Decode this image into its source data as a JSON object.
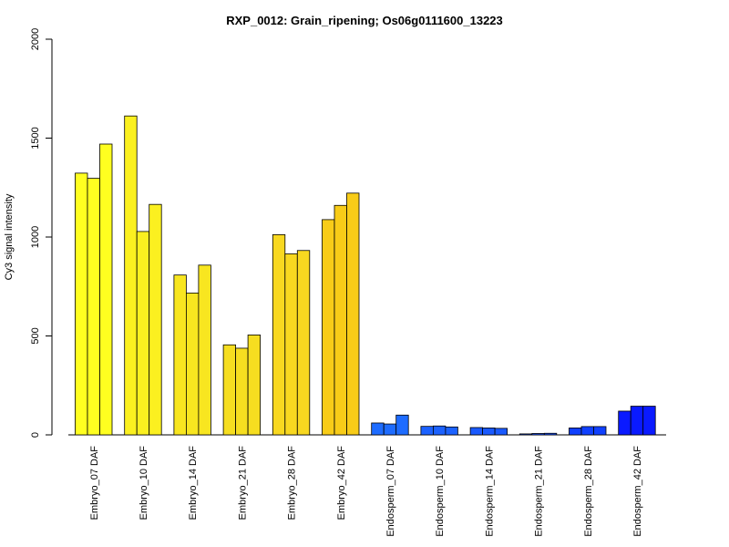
{
  "chart_data": {
    "type": "bar",
    "title": "RXP_0012: Grain_ripening; Os06g0111600_13223",
    "ylabel": "Cy3 signal intensity",
    "xlabel": "",
    "ylim": [
      0,
      2000
    ],
    "yticks": [
      0,
      500,
      1000,
      1500,
      2000
    ],
    "grid": false,
    "categories": [
      "Embryo_07 DAF",
      "Embryo_10 DAF",
      "Embryo_14 DAF",
      "Embryo_21 DAF",
      "Embryo_28 DAF",
      "Embryo_42 DAF",
      "Endosperm_07 DAF",
      "Endosperm_10 DAF",
      "Endosperm_14 DAF",
      "Endosperm_21 DAF",
      "Endosperm_28 DAF",
      "Endosperm_42 DAF"
    ],
    "replicates_per_category": 3,
    "values": [
      [
        1323,
        1297,
        1470
      ],
      [
        1612,
        1028,
        1165
      ],
      [
        808,
        717,
        858
      ],
      [
        455,
        438,
        505
      ],
      [
        1012,
        915,
        932
      ],
      [
        1088,
        1160,
        1222
      ],
      [
        60,
        55,
        100
      ],
      [
        43,
        45,
        40
      ],
      [
        37,
        35,
        33
      ],
      [
        5,
        7,
        8
      ],
      [
        35,
        42,
        42
      ],
      [
        120,
        145,
        145
      ]
    ],
    "colors": [
      "#ffff20",
      "#fbf020",
      "#f8e620",
      "#f6de20",
      "#f8d820",
      "#f8cc18",
      "#1e6cff",
      "#1c62ff",
      "#1a5aff",
      "#1650ff",
      "#1040ff",
      "#0a1aff"
    ]
  }
}
